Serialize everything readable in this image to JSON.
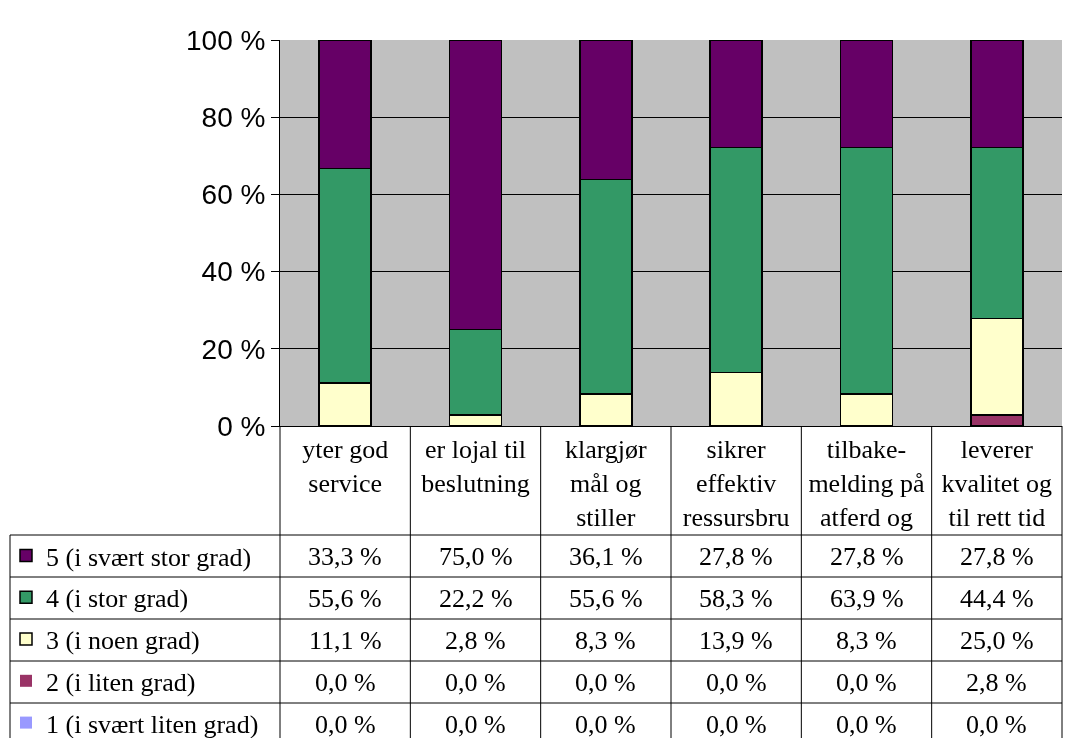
{
  "chart_data": {
    "type": "bar",
    "stacked": true,
    "categories": [
      "yter god\nservice",
      "er lojal til\nbeslutning",
      "klargjør\nmål og\nstiller",
      "sikrer\neffektiv\nressursbru",
      "tilbake-\nmelding på\natferd og",
      "leverer\nkvalitet og\ntil rett tid"
    ],
    "series": [
      {
        "name": "1 (i svært liten grad)",
        "color": "#9999ff",
        "values": [
          0,
          0,
          0,
          0,
          0,
          0
        ],
        "value_labels": [
          "0,0 %",
          "0,0 %",
          "0,0 %",
          "0,0 %",
          "0,0 %",
          "0,0 %"
        ]
      },
      {
        "name": "2 (i liten grad)",
        "color": "#993366",
        "values": [
          0,
          0,
          0,
          0,
          0,
          2.8
        ],
        "value_labels": [
          "0,0 %",
          "0,0 %",
          "0,0 %",
          "0,0 %",
          "0,0 %",
          "2,8 %"
        ]
      },
      {
        "name": "3 (i noen grad)",
        "color": "#ffffcc",
        "values": [
          11.1,
          2.8,
          8.3,
          13.9,
          8.3,
          25.0
        ],
        "value_labels": [
          "11,1 %",
          "2,8 %",
          "8,3 %",
          "13,9 %",
          "8,3 %",
          "25,0 %"
        ]
      },
      {
        "name": "4 (i stor grad)",
        "color": "#339966",
        "values": [
          55.6,
          22.2,
          55.6,
          58.3,
          63.9,
          44.4
        ],
        "value_labels": [
          "55,6 %",
          "22,2 %",
          "55,6 %",
          "58,3 %",
          "63,9 %",
          "44,4 %"
        ]
      },
      {
        "name": "5 (i svært stor grad)",
        "color": "#660066",
        "values": [
          33.3,
          75.0,
          36.1,
          27.8,
          27.8,
          27.8
        ],
        "value_labels": [
          "33,3 %",
          "75,0 %",
          "36,1 %",
          "27,8 %",
          "27,8 %",
          "27,8 %"
        ]
      }
    ],
    "ylim": [
      0,
      100
    ],
    "yticks": [
      {
        "value": 0,
        "label": "0 %"
      },
      {
        "value": 20,
        "label": "20 %"
      },
      {
        "value": 40,
        "label": "40 %"
      },
      {
        "value": 60,
        "label": "60 %"
      },
      {
        "value": 80,
        "label": "80 %"
      },
      {
        "value": 100,
        "label": "100 %"
      }
    ],
    "grid": "y",
    "legend": "bottom left"
  }
}
